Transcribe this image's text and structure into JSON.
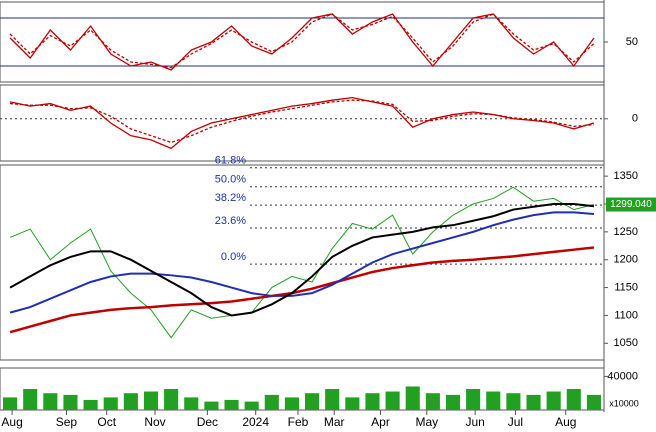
{
  "chart_data": [
    {
      "type": "line",
      "ylim": [
        0,
        100
      ],
      "yticks": [
        50
      ],
      "hlines": [
        80,
        20
      ],
      "series": [
        {
          "color": "#c00000",
          "dash": false,
          "values": [
            55,
            30,
            65,
            40,
            70,
            35,
            20,
            25,
            15,
            40,
            50,
            70,
            45,
            35,
            55,
            80,
            85,
            60,
            75,
            85,
            50,
            20,
            50,
            80,
            85,
            55,
            35,
            50,
            20,
            55
          ]
        },
        {
          "color": "#c00000",
          "dash": true,
          "values": [
            60,
            35,
            58,
            45,
            65,
            40,
            25,
            22,
            18,
            35,
            48,
            65,
            50,
            38,
            50,
            75,
            85,
            65,
            72,
            82,
            55,
            25,
            45,
            75,
            85,
            60,
            40,
            48,
            25,
            48
          ]
        }
      ]
    },
    {
      "type": "line",
      "ylim": [
        -50,
        40
      ],
      "yticks": [
        0
      ],
      "grid": true,
      "series": [
        {
          "color": "#c00000",
          "dash": false,
          "values": [
            20,
            15,
            18,
            10,
            15,
            -5,
            -20,
            -25,
            -35,
            -15,
            -5,
            0,
            5,
            10,
            15,
            18,
            22,
            25,
            20,
            15,
            -10,
            0,
            5,
            8,
            5,
            0,
            -2,
            -5,
            -12,
            -5
          ]
        },
        {
          "color": "#c00000",
          "dash": true,
          "values": [
            18,
            16,
            16,
            12,
            13,
            3,
            -12,
            -20,
            -28,
            -20,
            -10,
            -3,
            3,
            8,
            12,
            16,
            20,
            22,
            21,
            17,
            -3,
            -2,
            3,
            6,
            5,
            1,
            -1,
            -4,
            -9,
            -7
          ]
        }
      ]
    },
    {
      "type": "line",
      "ylim": [
        1020,
        1370
      ],
      "yticks": [
        1050,
        1100,
        1150,
        1200,
        1250,
        1300,
        1350
      ],
      "fib_levels": [
        {
          "value": 1365,
          "label": "61.8%"
        },
        {
          "value": 1331,
          "label": "50.0%"
        },
        {
          "value": 1298,
          "label": "38.2%"
        },
        {
          "value": 1257,
          "label": "23.6%"
        },
        {
          "value": 1192,
          "label": "0.0%"
        }
      ],
      "last_value": {
        "value": 1299.04,
        "label": "1299.040"
      },
      "series": [
        {
          "color": "#22a022",
          "width": 1,
          "values": [
            1240,
            1255,
            1200,
            1230,
            1255,
            1180,
            1140,
            1110,
            1060,
            1110,
            1095,
            1100,
            1105,
            1150,
            1170,
            1160,
            1220,
            1265,
            1255,
            1280,
            1210,
            1250,
            1280,
            1300,
            1310,
            1330,
            1305,
            1310,
            1290,
            1299.04
          ]
        },
        {
          "color": "#c00000",
          "width": 2.5,
          "values": [
            1070,
            1080,
            1090,
            1100,
            1105,
            1110,
            1113,
            1115,
            1118,
            1120,
            1122,
            1125,
            1130,
            1135,
            1140,
            1148,
            1158,
            1168,
            1178,
            1185,
            1190,
            1195,
            1198,
            1200,
            1203,
            1206,
            1210,
            1214,
            1218,
            1222
          ]
        },
        {
          "color": "#1f2fb0",
          "width": 2,
          "values": [
            1105,
            1115,
            1130,
            1145,
            1160,
            1170,
            1175,
            1175,
            1172,
            1168,
            1160,
            1150,
            1140,
            1135,
            1135,
            1140,
            1155,
            1175,
            1195,
            1210,
            1220,
            1230,
            1240,
            1250,
            1262,
            1272,
            1280,
            1285,
            1285,
            1282
          ]
        },
        {
          "color": "#000000",
          "width": 2,
          "values": [
            1150,
            1170,
            1190,
            1205,
            1215,
            1215,
            1200,
            1180,
            1160,
            1140,
            1115,
            1100,
            1105,
            1120,
            1140,
            1170,
            1205,
            1225,
            1240,
            1245,
            1250,
            1258,
            1262,
            1270,
            1278,
            1290,
            1295,
            1300,
            1300,
            1296
          ]
        }
      ]
    },
    {
      "type": "bar",
      "ylim": [
        0,
        50000
      ],
      "yticks": [
        40000
      ],
      "unit_label": "x10000",
      "color": "#22a022",
      "values": [
        15000,
        25000,
        20000,
        18000,
        12000,
        15000,
        20000,
        22000,
        25000,
        15000,
        10000,
        12000,
        10000,
        18000,
        15000,
        20000,
        25000,
        15000,
        20000,
        22000,
        28000,
        20000,
        18000,
        25000,
        22000,
        20000,
        18000,
        22000,
        25000,
        18000
      ],
      "xlim": [
        0,
        30
      ],
      "xticks": [
        {
          "value": 0.6,
          "label": "Aug"
        },
        {
          "value": 3.3,
          "label": "Sep"
        },
        {
          "value": 5.3,
          "label": "Oct"
        },
        {
          "value": 7.7,
          "label": "Nov"
        },
        {
          "value": 10.3,
          "label": "Dec"
        },
        {
          "value": 12.7,
          "label": "2024"
        },
        {
          "value": 14.8,
          "label": "Feb"
        },
        {
          "value": 16.6,
          "label": "Mar"
        },
        {
          "value": 18.9,
          "label": "Apr"
        },
        {
          "value": 21.2,
          "label": "May"
        },
        {
          "value": 23.6,
          "label": "Jun"
        },
        {
          "value": 25.6,
          "label": "Jul"
        },
        {
          "value": 28.1,
          "label": "Aug"
        }
      ]
    }
  ]
}
